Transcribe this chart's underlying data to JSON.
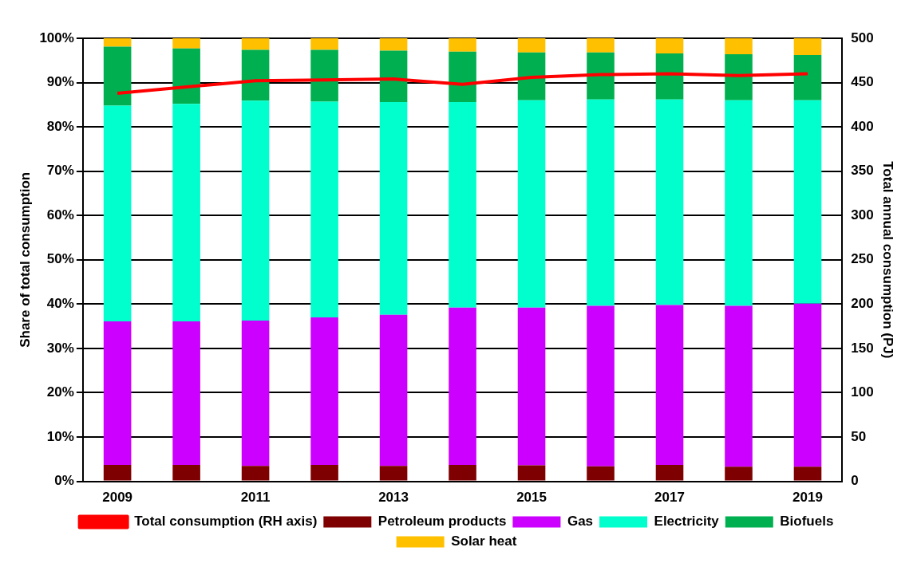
{
  "chart_data": {
    "type": "bar",
    "stacked": true,
    "ylabel": "Share of total consumption",
    "y2label": "Total annual consumption (PJ)",
    "categories": [
      "2009",
      null,
      "2011",
      null,
      "2013",
      null,
      "2015",
      null,
      "2017",
      null,
      "2019"
    ],
    "series": [
      {
        "name": "Petroleum products",
        "color": "#7f0000",
        "values": [
          3.7,
          3.7,
          3.5,
          3.7,
          3.5,
          3.7,
          3.6,
          3.4,
          3.7,
          3.3,
          3.3
        ]
      },
      {
        "name": "Gas",
        "color": "#cc00ff",
        "values": [
          32.4,
          32.4,
          32.8,
          33.3,
          34.1,
          35.5,
          35.6,
          36.2,
          36.1,
          36.3,
          36.8
        ]
      },
      {
        "name": "Electricity",
        "color": "#00ffcc",
        "values": [
          48.7,
          49.1,
          49.6,
          48.7,
          48.0,
          46.4,
          46.8,
          46.6,
          46.4,
          46.4,
          45.9
        ]
      },
      {
        "name": "Biofuels",
        "color": "#00b050",
        "values": [
          13.3,
          12.5,
          11.5,
          11.7,
          11.6,
          11.4,
          10.8,
          10.6,
          10.4,
          10.4,
          10.2
        ]
      },
      {
        "name": "Solar heat",
        "color": "#ffc000",
        "values": [
          1.9,
          2.3,
          2.6,
          2.6,
          2.8,
          3.0,
          3.2,
          3.2,
          3.4,
          3.6,
          3.8
        ]
      },
      {
        "name": "Total consumption (RH axis)",
        "type": "line",
        "axis": "y2",
        "color": "#ff0000",
        "values": [
          438,
          445,
          452,
          453,
          454,
          448,
          456,
          459,
          460,
          458,
          460
        ]
      }
    ],
    "ylim": [
      0,
      100
    ],
    "yticks": [
      {
        "value": 0,
        "label": "0%"
      },
      {
        "value": 10,
        "label": "10%"
      },
      {
        "value": 20,
        "label": "20%"
      },
      {
        "value": 30,
        "label": "30%"
      },
      {
        "value": 40,
        "label": "40%"
      },
      {
        "value": 50,
        "label": "50%"
      },
      {
        "value": 60,
        "label": "60%"
      },
      {
        "value": 70,
        "label": "70%"
      },
      {
        "value": 80,
        "label": "80%"
      },
      {
        "value": 90,
        "label": "90%"
      },
      {
        "value": 100,
        "label": "100%"
      }
    ],
    "y2lim": [
      0,
      500
    ],
    "y2ticks": [
      0,
      50,
      100,
      150,
      200,
      250,
      300,
      350,
      400,
      450,
      500
    ],
    "grid": "y",
    "legend": "bottom",
    "marker": "none"
  }
}
